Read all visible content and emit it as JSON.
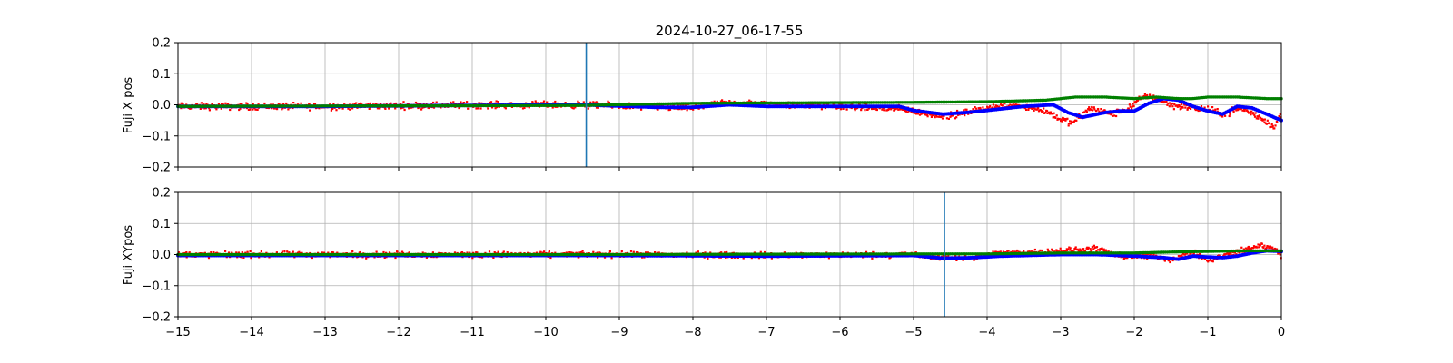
{
  "figure": {
    "title": "2024-10-27_06-17-55",
    "xticks": [
      "−15",
      "−14",
      "−13",
      "−12",
      "−11",
      "−10",
      "−9",
      "−8",
      "−7",
      "−6",
      "−5",
      "−4",
      "−3",
      "−2",
      "−1",
      "0"
    ]
  },
  "chart_data": [
    {
      "type": "scatter",
      "ylabel": "Fuji X pos",
      "xlim": [
        -15,
        0
      ],
      "ylim": [
        -0.2,
        0.2
      ],
      "yticks": [
        -0.2,
        -0.1,
        0.0,
        0.1,
        0.2
      ],
      "ytick_labels": [
        "−0.2",
        "−0.1",
        "0.0",
        "0.1",
        "0.2"
      ],
      "grid": true,
      "marker_line": {
        "x": -9.45,
        "color": "#1f77b4"
      },
      "series": [
        {
          "role": "raw",
          "color": "#ff0000",
          "noise": 0.009,
          "x": [
            -15,
            -13,
            -11,
            -9.5,
            -8,
            -7.6,
            -7.4,
            -6,
            -5.1,
            -4.8,
            -4.5,
            -4.2,
            -4.0,
            -3.6,
            -3.2,
            -3.0,
            -2.85,
            -2.6,
            -2.3,
            -2.1,
            -1.85,
            -1.7,
            -1.5,
            -1.2,
            -1.0,
            -0.8,
            -0.55,
            -0.3,
            -0.1,
            0
          ],
          "values": [
            -0.005,
            -0.005,
            0.0,
            0.0,
            -0.01,
            0.005,
            0.005,
            -0.005,
            -0.015,
            -0.03,
            -0.035,
            -0.02,
            -0.01,
            0.0,
            -0.02,
            -0.045,
            -0.06,
            -0.01,
            -0.03,
            -0.015,
            0.03,
            0.02,
            0.0,
            -0.01,
            -0.015,
            -0.03,
            -0.01,
            -0.04,
            -0.07,
            -0.03
          ]
        },
        {
          "role": "filtered",
          "color": "#0000ff",
          "x": [
            -15,
            -13,
            -11,
            -9.5,
            -8.5,
            -8,
            -7.5,
            -7,
            -6,
            -5.2,
            -5.0,
            -4.6,
            -4.3,
            -4.0,
            -3.5,
            -3.1,
            -2.9,
            -2.7,
            -2.4,
            -2.2,
            -2.0,
            -1.8,
            -1.6,
            -1.4,
            -1.2,
            -1.0,
            -0.8,
            -0.6,
            -0.4,
            -0.2,
            0
          ],
          "values": [
            -0.005,
            -0.005,
            -0.002,
            0.0,
            -0.008,
            -0.008,
            0.0,
            -0.005,
            -0.005,
            -0.005,
            -0.018,
            -0.03,
            -0.025,
            -0.018,
            -0.005,
            0.0,
            -0.025,
            -0.04,
            -0.025,
            -0.02,
            -0.02,
            0.005,
            0.02,
            0.015,
            -0.005,
            -0.02,
            -0.03,
            -0.005,
            -0.01,
            -0.03,
            -0.05
          ]
        },
        {
          "role": "reference",
          "color": "#008000",
          "x": [
            -15,
            -9.5,
            -8,
            -6,
            -5,
            -4,
            -3.2,
            -2.8,
            -2.4,
            -2.0,
            -1.7,
            -1.4,
            -1.2,
            -1.0,
            -0.6,
            -0.2,
            0
          ],
          "values": [
            -0.005,
            -0.002,
            0.005,
            0.007,
            0.008,
            0.01,
            0.015,
            0.025,
            0.025,
            0.02,
            0.025,
            0.02,
            0.02,
            0.025,
            0.025,
            0.02,
            0.02
          ]
        }
      ]
    },
    {
      "type": "scatter",
      "ylabel": "Fuji XYpos",
      "xlim": [
        -15,
        0
      ],
      "ylim": [
        -0.2,
        0.2
      ],
      "yticks": [
        -0.2,
        -0.1,
        0.0,
        0.1,
        0.2
      ],
      "ytick_labels": [
        "−0.2",
        "−0.1",
        "0.0",
        "0.1",
        "0.2"
      ],
      "grid": true,
      "marker_line": {
        "x": -4.58,
        "color": "#1f77b4"
      },
      "series": [
        {
          "role": "raw",
          "color": "#ff0000",
          "noise": 0.008,
          "x": [
            -15,
            -12,
            -9,
            -7,
            -5,
            -4.6,
            -4.2,
            -3.8,
            -3.3,
            -2.8,
            -2.5,
            -2.2,
            -1.8,
            -1.5,
            -1.2,
            -1.0,
            -0.8,
            -0.5,
            -0.3,
            -0.1,
            0
          ],
          "values": [
            0.0,
            0.0,
            0.0,
            -0.002,
            0.0,
            -0.01,
            -0.01,
            0.005,
            0.008,
            0.015,
            0.018,
            -0.005,
            -0.005,
            -0.015,
            0.005,
            -0.02,
            -0.005,
            0.015,
            0.03,
            0.02,
            0.0
          ]
        },
        {
          "role": "filtered",
          "color": "#0000ff",
          "x": [
            -15,
            -12,
            -9,
            -7,
            -5,
            -4.6,
            -4.2,
            -3.8,
            -3.0,
            -2.5,
            -2.0,
            -1.6,
            -1.4,
            -1.2,
            -1.0,
            -0.8,
            -0.6,
            -0.4,
            -0.2,
            0
          ],
          "values": [
            -0.003,
            -0.003,
            -0.003,
            -0.005,
            -0.003,
            -0.012,
            -0.01,
            -0.005,
            0.0,
            0.0,
            -0.005,
            -0.01,
            -0.015,
            -0.005,
            -0.008,
            -0.01,
            -0.005,
            0.005,
            0.012,
            0.01
          ]
        },
        {
          "role": "reference",
          "color": "#008000",
          "x": [
            -15,
            -10,
            -5,
            -4,
            -3,
            -2,
            -1.5,
            -1.0,
            -0.5,
            0
          ],
          "values": [
            0.0,
            0.0,
            0.002,
            0.002,
            0.005,
            0.005,
            0.008,
            0.01,
            0.012,
            0.012
          ]
        }
      ]
    }
  ]
}
